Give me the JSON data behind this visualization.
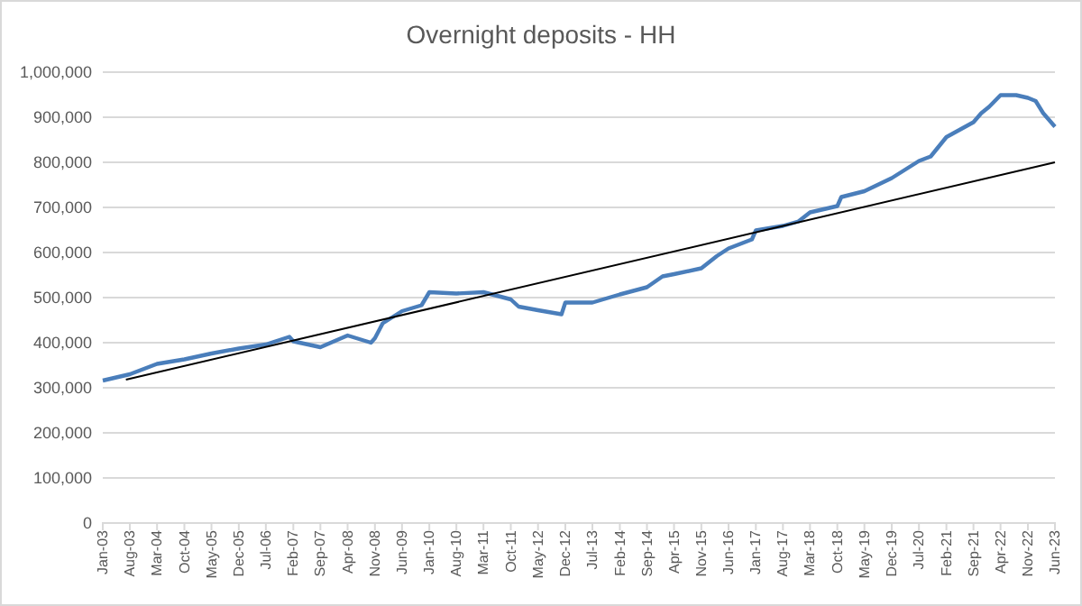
{
  "chart_data": {
    "type": "line",
    "title": "Overnight deposits - HH",
    "x": [
      "2003-01",
      "2003-08",
      "2004-03",
      "2004-10",
      "2005-05",
      "2005-12",
      "2006-07",
      "2007-01",
      "2007-02",
      "2007-09",
      "2008-04",
      "2008-10",
      "2008-11",
      "2009-01",
      "2009-06",
      "2009-11",
      "2010-01",
      "2010-08",
      "2011-03",
      "2011-10",
      "2011-12",
      "2012-05",
      "2012-11",
      "2012-12",
      "2013-07",
      "2014-02",
      "2014-09",
      "2015-01",
      "2015-04",
      "2015-11",
      "2016-03",
      "2016-06",
      "2016-12",
      "2017-01",
      "2017-08",
      "2017-12",
      "2018-03",
      "2018-10",
      "2018-11",
      "2019-05",
      "2019-12",
      "2020-07",
      "2020-10",
      "2021-02",
      "2021-09",
      "2021-11",
      "2022-01",
      "2022-04",
      "2022-08",
      "2022-11",
      "2023-01",
      "2023-03",
      "2023-06"
    ],
    "series": [
      {
        "color": "#4a7ebb",
        "values": [
          316000,
          330000,
          353000,
          363000,
          376000,
          387000,
          396000,
          413000,
          403000,
          390000,
          416000,
          400000,
          410000,
          443000,
          470000,
          483000,
          512000,
          509000,
          512000,
          496000,
          480000,
          472000,
          463000,
          489000,
          489000,
          507000,
          523000,
          547000,
          552000,
          565000,
          592000,
          609000,
          629000,
          649000,
          659000,
          669000,
          689000,
          703000,
          723000,
          736000,
          765000,
          803000,
          813000,
          856000,
          889000,
          909000,
          923000,
          949000,
          949000,
          943000,
          936000,
          909000,
          879000
        ]
      },
      {
        "type": "line",
        "color": "#000000",
        "x": [
          "2003-07",
          "2023-06"
        ],
        "values": [
          318000,
          800000
        ]
      }
    ],
    "xlim": [
      "2003-01",
      "2023-06"
    ],
    "xticks": [
      {
        "value": "2003-01",
        "label": "Jan-03"
      },
      {
        "value": "2003-08",
        "label": "Aug-03"
      },
      {
        "value": "2004-03",
        "label": "Mar-04"
      },
      {
        "value": "2004-10",
        "label": "Oct-04"
      },
      {
        "value": "2005-05",
        "label": "May-05"
      },
      {
        "value": "2005-12",
        "label": "Dec-05"
      },
      {
        "value": "2006-07",
        "label": "Jul-06"
      },
      {
        "value": "2007-02",
        "label": "Feb-07"
      },
      {
        "value": "2007-09",
        "label": "Sep-07"
      },
      {
        "value": "2008-04",
        "label": "Apr-08"
      },
      {
        "value": "2008-11",
        "label": "Nov-08"
      },
      {
        "value": "2009-06",
        "label": "Jun-09"
      },
      {
        "value": "2010-01",
        "label": "Jan-10"
      },
      {
        "value": "2010-08",
        "label": "Aug-10"
      },
      {
        "value": "2011-03",
        "label": "Mar-11"
      },
      {
        "value": "2011-10",
        "label": "Oct-11"
      },
      {
        "value": "2012-05",
        "label": "May-12"
      },
      {
        "value": "2012-12",
        "label": "Dec-12"
      },
      {
        "value": "2013-07",
        "label": "Jul-13"
      },
      {
        "value": "2014-02",
        "label": "Feb-14"
      },
      {
        "value": "2014-09",
        "label": "Sep-14"
      },
      {
        "value": "2015-04",
        "label": "Apr-15"
      },
      {
        "value": "2015-11",
        "label": "Nov-15"
      },
      {
        "value": "2016-06",
        "label": "Jun-16"
      },
      {
        "value": "2017-01",
        "label": "Jan-17"
      },
      {
        "value": "2017-08",
        "label": "Aug-17"
      },
      {
        "value": "2018-03",
        "label": "Mar-18"
      },
      {
        "value": "2018-10",
        "label": "Oct-18"
      },
      {
        "value": "2019-05",
        "label": "May-19"
      },
      {
        "value": "2019-12",
        "label": "Dec-19"
      },
      {
        "value": "2020-07",
        "label": "Jul-20"
      },
      {
        "value": "2021-02",
        "label": "Feb-21"
      },
      {
        "value": "2021-09",
        "label": "Sep-21"
      },
      {
        "value": "2022-04",
        "label": "Apr-22"
      },
      {
        "value": "2022-11",
        "label": "Nov-22"
      },
      {
        "value": "2023-06",
        "label": "Jun-23"
      }
    ],
    "ylim": [
      0,
      1000000
    ],
    "yticks": [
      0,
      {
        "value": 100000,
        "label": "100,000"
      },
      {
        "value": 200000,
        "label": "200,000"
      },
      {
        "value": 300000,
        "label": "300,000"
      },
      {
        "value": 400000,
        "label": "400,000"
      },
      {
        "value": 500000,
        "label": "500,000"
      },
      {
        "value": 600000,
        "label": "600,000"
      },
      {
        "value": 700000,
        "label": "700,000"
      },
      {
        "value": 800000,
        "label": "800,000"
      },
      {
        "value": 900000,
        "label": "900,000"
      },
      {
        "value": 1000000,
        "label": "1,000,000"
      }
    ],
    "grid": "y",
    "marker": "none",
    "line_style": "solid"
  }
}
